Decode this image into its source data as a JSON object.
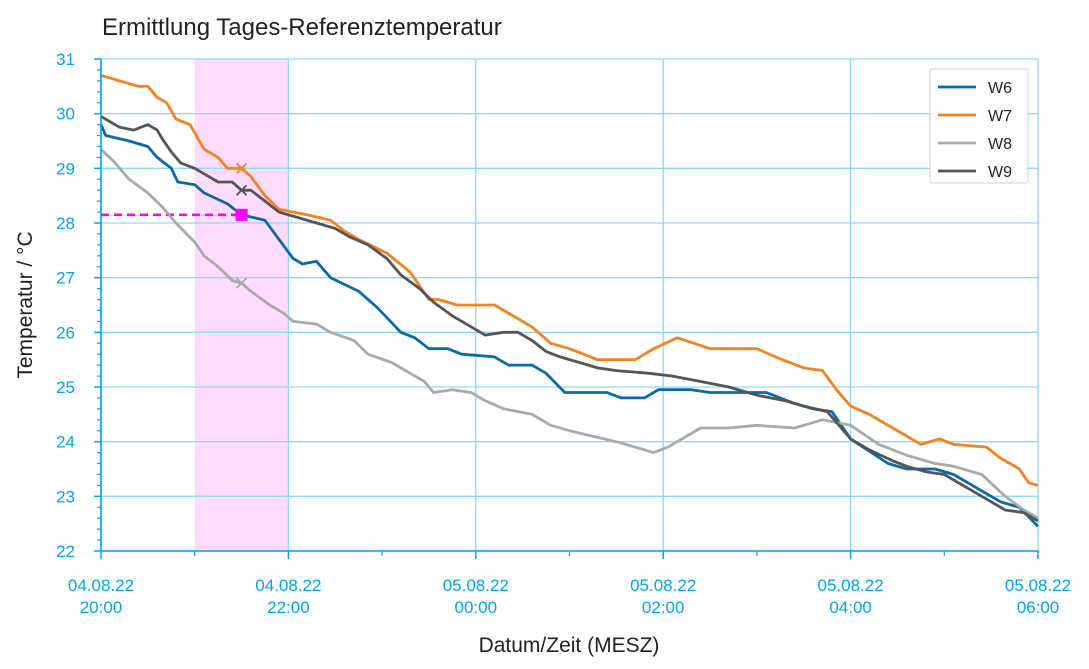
{
  "chart_data": {
    "type": "line",
    "title": "Ermittlung Tages-Referenztemperatur",
    "xlabel": "Datum/Zeit (MESZ)",
    "ylabel": "Temperatur / °C",
    "xlim": [
      0,
      10
    ],
    "ylim": [
      22,
      31
    ],
    "grid": true,
    "legend_position": "top-right",
    "tick_color": "#00a6e6",
    "grid_color": "#8fd9f5",
    "y_ticks": [
      "22",
      "23",
      "24",
      "25",
      "26",
      "27",
      "28",
      "29",
      "30",
      "31"
    ],
    "x_ticks": [
      {
        "date": "04.08.22",
        "time": "20:00"
      },
      {
        "date": "04.08.22",
        "time": "22:00"
      },
      {
        "date": "05.08.22",
        "time": "00:00"
      },
      {
        "date": "05.08.22",
        "time": "02:00"
      },
      {
        "date": "05.08.22",
        "time": "04:00"
      },
      {
        "date": "05.08.22",
        "time": "06:00"
      }
    ],
    "highlight_band": {
      "x_start": 1.0,
      "x_end": 2.0,
      "color": "#ffdcff"
    },
    "reference": {
      "x": 1.5,
      "y": 28.15,
      "color": "#ff00ff"
    },
    "series": [
      {
        "name": "W6",
        "color": "#0a6aa6",
        "points": [
          [
            0,
            29.8
          ],
          [
            0.05,
            29.6
          ],
          [
            0.3,
            29.5
          ],
          [
            0.5,
            29.4
          ],
          [
            0.6,
            29.2
          ],
          [
            0.75,
            29.0
          ],
          [
            0.82,
            28.75
          ],
          [
            1.0,
            28.7
          ],
          [
            1.1,
            28.55
          ],
          [
            1.35,
            28.35
          ],
          [
            1.5,
            28.15
          ],
          [
            1.75,
            28.05
          ],
          [
            1.9,
            27.7
          ],
          [
            2.05,
            27.35
          ],
          [
            2.15,
            27.25
          ],
          [
            2.3,
            27.3
          ],
          [
            2.45,
            27.0
          ],
          [
            2.75,
            26.75
          ],
          [
            2.95,
            26.45
          ],
          [
            3.2,
            26.0
          ],
          [
            3.35,
            25.9
          ],
          [
            3.5,
            25.7
          ],
          [
            3.7,
            25.7
          ],
          [
            3.85,
            25.6
          ],
          [
            4.2,
            25.55
          ],
          [
            4.35,
            25.4
          ],
          [
            4.6,
            25.4
          ],
          [
            4.75,
            25.25
          ],
          [
            4.95,
            24.9
          ],
          [
            5.4,
            24.9
          ],
          [
            5.55,
            24.8
          ],
          [
            5.8,
            24.8
          ],
          [
            5.95,
            24.95
          ],
          [
            6.3,
            24.95
          ],
          [
            6.5,
            24.9
          ],
          [
            7.1,
            24.9
          ],
          [
            7.4,
            24.7
          ],
          [
            7.6,
            24.6
          ],
          [
            7.8,
            24.55
          ],
          [
            8.0,
            24.05
          ],
          [
            8.4,
            23.6
          ],
          [
            8.6,
            23.5
          ],
          [
            8.9,
            23.5
          ],
          [
            9.1,
            23.4
          ],
          [
            9.3,
            23.2
          ],
          [
            9.6,
            22.9
          ],
          [
            9.8,
            22.8
          ],
          [
            10.0,
            22.45
          ]
        ]
      },
      {
        "name": "W7",
        "color": "#f58220",
        "points": [
          [
            0,
            30.7
          ],
          [
            0.1,
            30.65
          ],
          [
            0.2,
            30.6
          ],
          [
            0.4,
            30.5
          ],
          [
            0.5,
            30.5
          ],
          [
            0.6,
            30.3
          ],
          [
            0.7,
            30.2
          ],
          [
            0.8,
            29.9
          ],
          [
            0.95,
            29.8
          ],
          [
            1.1,
            29.35
          ],
          [
            1.25,
            29.2
          ],
          [
            1.35,
            29.0
          ],
          [
            1.5,
            29.0
          ],
          [
            1.6,
            28.85
          ],
          [
            1.75,
            28.5
          ],
          [
            1.9,
            28.25
          ],
          [
            2.05,
            28.2
          ],
          [
            2.2,
            28.15
          ],
          [
            2.45,
            28.05
          ],
          [
            2.6,
            27.85
          ],
          [
            2.75,
            27.7
          ],
          [
            3.05,
            27.45
          ],
          [
            3.3,
            27.1
          ],
          [
            3.5,
            26.6
          ],
          [
            3.6,
            26.6
          ],
          [
            3.8,
            26.5
          ],
          [
            4.2,
            26.5
          ],
          [
            4.45,
            26.25
          ],
          [
            4.6,
            26.1
          ],
          [
            4.8,
            25.8
          ],
          [
            5.0,
            25.7
          ],
          [
            5.3,
            25.5
          ],
          [
            5.7,
            25.5
          ],
          [
            5.9,
            25.7
          ],
          [
            6.15,
            25.9
          ],
          [
            6.5,
            25.7
          ],
          [
            7.0,
            25.7
          ],
          [
            7.2,
            25.55
          ],
          [
            7.5,
            25.35
          ],
          [
            7.7,
            25.3
          ],
          [
            7.85,
            24.95
          ],
          [
            8.0,
            24.65
          ],
          [
            8.2,
            24.5
          ],
          [
            8.45,
            24.25
          ],
          [
            8.75,
            23.95
          ],
          [
            8.95,
            24.05
          ],
          [
            9.1,
            23.95
          ],
          [
            9.45,
            23.9
          ],
          [
            9.6,
            23.7
          ],
          [
            9.8,
            23.5
          ],
          [
            9.9,
            23.25
          ],
          [
            10.0,
            23.2
          ]
        ]
      },
      {
        "name": "W8",
        "color": "#aaaaaa",
        "points": [
          [
            0,
            29.35
          ],
          [
            0.15,
            29.1
          ],
          [
            0.3,
            28.8
          ],
          [
            0.5,
            28.55
          ],
          [
            0.65,
            28.3
          ],
          [
            0.8,
            28.0
          ],
          [
            1.0,
            27.65
          ],
          [
            1.1,
            27.4
          ],
          [
            1.25,
            27.2
          ],
          [
            1.4,
            26.95
          ],
          [
            1.5,
            26.9
          ],
          [
            1.6,
            26.75
          ],
          [
            1.8,
            26.5
          ],
          [
            1.95,
            26.35
          ],
          [
            2.05,
            26.2
          ],
          [
            2.3,
            26.15
          ],
          [
            2.45,
            26.0
          ],
          [
            2.7,
            25.85
          ],
          [
            2.85,
            25.6
          ],
          [
            3.1,
            25.45
          ],
          [
            3.3,
            25.25
          ],
          [
            3.45,
            25.1
          ],
          [
            3.55,
            24.9
          ],
          [
            3.75,
            24.95
          ],
          [
            3.95,
            24.9
          ],
          [
            4.1,
            24.75
          ],
          [
            4.3,
            24.6
          ],
          [
            4.6,
            24.5
          ],
          [
            4.8,
            24.3
          ],
          [
            5.0,
            24.2
          ],
          [
            5.25,
            24.1
          ],
          [
            5.5,
            24.0
          ],
          [
            5.7,
            23.9
          ],
          [
            5.9,
            23.8
          ],
          [
            6.05,
            23.9
          ],
          [
            6.2,
            24.05
          ],
          [
            6.4,
            24.25
          ],
          [
            6.7,
            24.25
          ],
          [
            7.0,
            24.3
          ],
          [
            7.4,
            24.25
          ],
          [
            7.7,
            24.4
          ],
          [
            8.0,
            24.3
          ],
          [
            8.3,
            23.95
          ],
          [
            8.6,
            23.75
          ],
          [
            8.9,
            23.6
          ],
          [
            9.1,
            23.55
          ],
          [
            9.4,
            23.4
          ],
          [
            9.65,
            23.0
          ],
          [
            9.85,
            22.75
          ],
          [
            10.0,
            22.6
          ]
        ]
      },
      {
        "name": "W9",
        "color": "#555555",
        "points": [
          [
            0,
            29.95
          ],
          [
            0.1,
            29.85
          ],
          [
            0.2,
            29.75
          ],
          [
            0.35,
            29.7
          ],
          [
            0.5,
            29.8
          ],
          [
            0.6,
            29.7
          ],
          [
            0.65,
            29.55
          ],
          [
            0.75,
            29.3
          ],
          [
            0.85,
            29.1
          ],
          [
            1.0,
            29.0
          ],
          [
            1.1,
            28.9
          ],
          [
            1.25,
            28.75
          ],
          [
            1.4,
            28.75
          ],
          [
            1.5,
            28.6
          ],
          [
            1.6,
            28.6
          ],
          [
            1.75,
            28.4
          ],
          [
            1.9,
            28.2
          ],
          [
            2.1,
            28.1
          ],
          [
            2.3,
            28.0
          ],
          [
            2.5,
            27.9
          ],
          [
            2.65,
            27.75
          ],
          [
            2.85,
            27.6
          ],
          [
            3.05,
            27.35
          ],
          [
            3.2,
            27.05
          ],
          [
            3.4,
            26.8
          ],
          [
            3.55,
            26.55
          ],
          [
            3.75,
            26.3
          ],
          [
            4.0,
            26.05
          ],
          [
            4.1,
            25.95
          ],
          [
            4.3,
            26.0
          ],
          [
            4.45,
            26.0
          ],
          [
            4.6,
            25.85
          ],
          [
            4.75,
            25.65
          ],
          [
            4.9,
            25.55
          ],
          [
            5.1,
            25.45
          ],
          [
            5.3,
            25.35
          ],
          [
            5.5,
            25.3
          ],
          [
            5.85,
            25.25
          ],
          [
            6.1,
            25.2
          ],
          [
            6.4,
            25.1
          ],
          [
            6.7,
            25.0
          ],
          [
            7.0,
            24.85
          ],
          [
            7.3,
            24.75
          ],
          [
            7.5,
            24.65
          ],
          [
            7.75,
            24.55
          ],
          [
            8.0,
            24.05
          ],
          [
            8.2,
            23.85
          ],
          [
            8.45,
            23.65
          ],
          [
            8.6,
            23.55
          ],
          [
            8.8,
            23.45
          ],
          [
            9.0,
            23.4
          ],
          [
            9.2,
            23.2
          ],
          [
            9.45,
            22.95
          ],
          [
            9.65,
            22.75
          ],
          [
            9.85,
            22.7
          ],
          [
            10.0,
            22.55
          ]
        ]
      }
    ]
  }
}
